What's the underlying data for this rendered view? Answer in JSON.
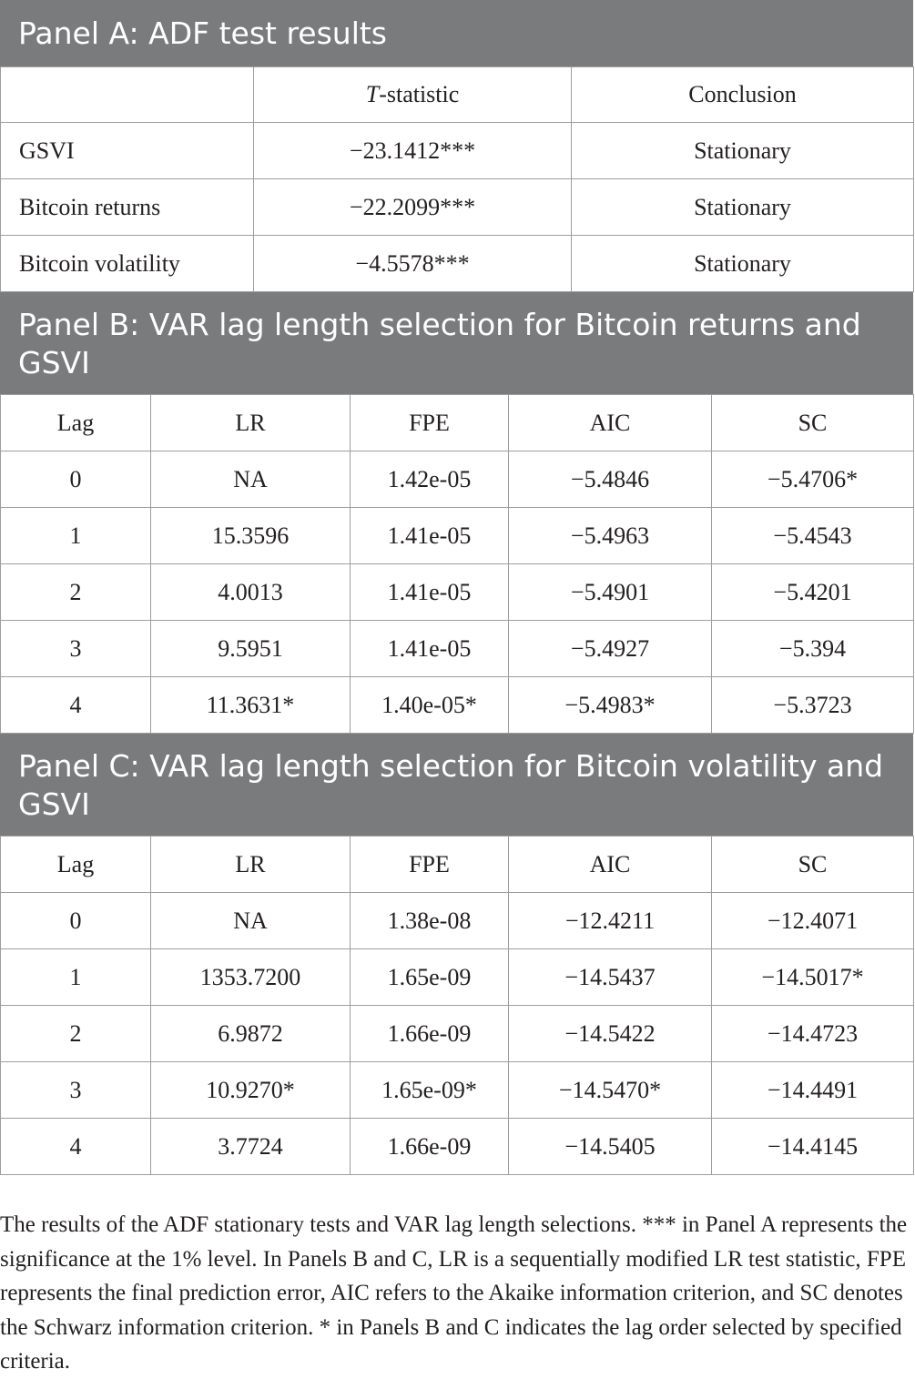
{
  "panel_a": {
    "title": "Panel A: ADF test results",
    "headers": [
      "",
      "-statistic",
      "Conclusion"
    ],
    "header_italic_prefix": "T",
    "rows": [
      {
        "variable": "GSVI",
        "t_statistic": "−23.1412***",
        "conclusion": "Stationary"
      },
      {
        "variable": "Bitcoin returns",
        "t_statistic": "−22.2099***",
        "conclusion": "Stationary"
      },
      {
        "variable": "Bitcoin volatility",
        "t_statistic": "−4.5578***",
        "conclusion": "Stationary"
      }
    ]
  },
  "panel_b": {
    "title": "Panel B: VAR lag length selection for Bitcoin returns and GSVI",
    "headers": [
      "Lag",
      "LR",
      "FPE",
      "AIC",
      "SC"
    ],
    "rows": [
      [
        "0",
        "NA",
        "1.42e-05",
        "−5.4846",
        "−5.4706*"
      ],
      [
        "1",
        "15.3596",
        "1.41e-05",
        "−5.4963",
        "−5.4543"
      ],
      [
        "2",
        "4.0013",
        "1.41e-05",
        "−5.4901",
        "−5.4201"
      ],
      [
        "3",
        "9.5951",
        "1.41e-05",
        "−5.4927",
        "−5.394"
      ],
      [
        "4",
        "11.3631*",
        "1.40e-05*",
        "−5.4983*",
        "−5.3723"
      ]
    ]
  },
  "panel_c": {
    "title": "Panel C: VAR lag length selection for Bitcoin volatility and GSVI",
    "headers": [
      "Lag",
      "LR",
      "FPE",
      "AIC",
      "SC"
    ],
    "rows": [
      [
        "0",
        "NA",
        "1.38e-08",
        "−12.4211",
        "−12.4071"
      ],
      [
        "1",
        "1353.7200",
        "1.65e-09",
        "−14.5437",
        "−14.5017*"
      ],
      [
        "2",
        "6.9872",
        "1.66e-09",
        "−14.5422",
        "−14.4723"
      ],
      [
        "3",
        "10.9270*",
        "1.65e-09*",
        "−14.5470*",
        "−14.4491"
      ],
      [
        "4",
        "3.7724",
        "1.66e-09",
        "−14.5405",
        "−14.4145"
      ]
    ]
  },
  "footnote": "The results of the ADF stationary tests and VAR lag length selections. *** in Panel A represents the significance at the 1% level. In Panels B and C, LR is a sequentially modified LR test statistic, FPE represents the final prediction error, AIC refers to the Akaike information criterion, and SC denotes the Schwarz information criterion. * in Panels B and C indicates the lag order selected by specified criteria.",
  "colors": {
    "header_bg": "#7a7b7d",
    "header_text": "#ffffff",
    "border": "#9d9d9f",
    "text": "#231f20"
  }
}
